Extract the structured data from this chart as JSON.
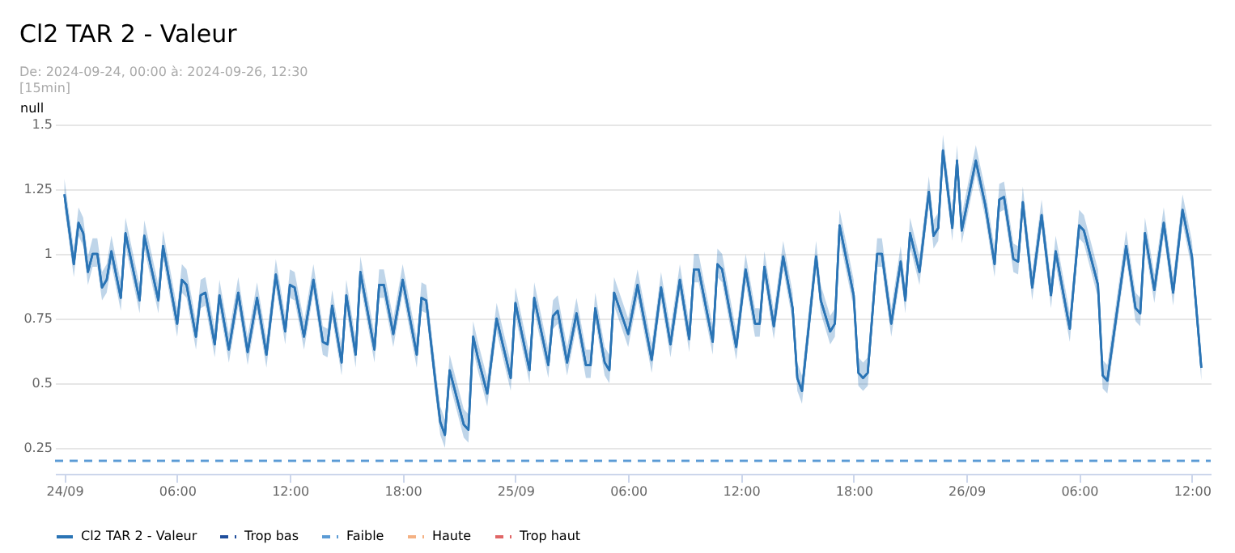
{
  "chart_data": {
    "type": "line",
    "title": "Cl2 TAR  2 - Valeur",
    "subtitle": "De:  2024-09-24, 00:00 à:  2024-09-26, 12:30",
    "ylabel": "null",
    "annotations": [
      "[15min]"
    ],
    "xlim": [
      "2024-09-23T23:30",
      "2024-09-26T13:00"
    ],
    "xticks": [
      {
        "value": "2024-09-24T00:00",
        "label": "24/09"
      },
      {
        "value": "2024-09-24T06:00",
        "label": "06:00"
      },
      {
        "value": "2024-09-24T12:00",
        "label": "12:00"
      },
      {
        "value": "2024-09-24T18:00",
        "label": "18:00"
      },
      {
        "value": "2024-09-25T00:00",
        "label": "25/09"
      },
      {
        "value": "2024-09-25T06:00",
        "label": "06:00"
      },
      {
        "value": "2024-09-25T12:00",
        "label": "12:00"
      },
      {
        "value": "2024-09-25T18:00",
        "label": "18:00"
      },
      {
        "value": "2024-09-26T00:00",
        "label": "26/09"
      },
      {
        "value": "2024-09-26T06:00",
        "label": "06:00"
      },
      {
        "value": "2024-09-26T12:00",
        "label": "12:00"
      }
    ],
    "ylim": [
      0.15,
      1.5
    ],
    "yticks": [
      0.25,
      0.5,
      0.75,
      1,
      1.25,
      1.5
    ],
    "grid": "y",
    "legend": "bottom",
    "line_style": "solid",
    "series": [
      {
        "name": "Cl2 TAR 2 - Valeur",
        "color": "#2a74b5",
        "x": [
          "2024-09-24T00:00",
          "2024-09-24T00:30",
          "2024-09-24T00:45",
          "2024-09-24T01:00",
          "2024-09-24T01:15",
          "2024-09-24T01:30",
          "2024-09-24T01:45",
          "2024-09-24T02:00",
          "2024-09-24T02:15",
          "2024-09-24T02:30",
          "2024-09-24T03:00",
          "2024-09-24T03:15",
          "2024-09-24T04:00",
          "2024-09-24T04:15",
          "2024-09-24T05:00",
          "2024-09-24T05:15",
          "2024-09-24T06:00",
          "2024-09-24T06:15",
          "2024-09-24T06:30",
          "2024-09-24T07:00",
          "2024-09-24T07:15",
          "2024-09-24T07:30",
          "2024-09-24T08:00",
          "2024-09-24T08:15",
          "2024-09-24T08:45",
          "2024-09-24T09:15",
          "2024-09-24T09:45",
          "2024-09-24T10:15",
          "2024-09-24T10:45",
          "2024-09-24T11:15",
          "2024-09-24T11:45",
          "2024-09-24T12:00",
          "2024-09-24T12:15",
          "2024-09-24T12:45",
          "2024-09-24T13:15",
          "2024-09-24T13:45",
          "2024-09-24T14:00",
          "2024-09-24T14:15",
          "2024-09-24T14:45",
          "2024-09-24T15:00",
          "2024-09-24T15:30",
          "2024-09-24T15:45",
          "2024-09-24T16:30",
          "2024-09-24T16:45",
          "2024-09-24T17:00",
          "2024-09-24T17:30",
          "2024-09-24T18:00",
          "2024-09-24T18:45",
          "2024-09-24T19:00",
          "2024-09-24T19:15",
          "2024-09-24T19:45",
          "2024-09-24T20:00",
          "2024-09-24T20:15",
          "2024-09-24T20:30",
          "2024-09-24T20:45",
          "2024-09-24T21:15",
          "2024-09-24T21:30",
          "2024-09-24T21:45",
          "2024-09-24T22:00",
          "2024-09-24T22:30",
          "2024-09-24T23:00",
          "2024-09-24T23:45",
          "2024-09-25T00:00",
          "2024-09-25T00:45",
          "2024-09-25T01:00",
          "2024-09-25T01:45",
          "2024-09-25T02:00",
          "2024-09-25T02:15",
          "2024-09-25T02:45",
          "2024-09-25T03:15",
          "2024-09-25T03:45",
          "2024-09-25T04:00",
          "2024-09-25T04:15",
          "2024-09-25T04:45",
          "2024-09-25T05:00",
          "2024-09-25T05:15",
          "2024-09-25T06:00",
          "2024-09-25T06:30",
          "2024-09-25T07:15",
          "2024-09-25T07:45",
          "2024-09-25T08:15",
          "2024-09-25T08:45",
          "2024-09-25T09:15",
          "2024-09-25T09:30",
          "2024-09-25T09:45",
          "2024-09-25T10:30",
          "2024-09-25T10:45",
          "2024-09-25T11:00",
          "2024-09-25T11:45",
          "2024-09-25T12:15",
          "2024-09-25T12:45",
          "2024-09-25T13:00",
          "2024-09-25T13:15",
          "2024-09-25T13:45",
          "2024-09-25T14:15",
          "2024-09-25T14:45",
          "2024-09-25T15:00",
          "2024-09-25T15:15",
          "2024-09-25T16:00",
          "2024-09-25T16:15",
          "2024-09-25T16:45",
          "2024-09-25T17:00",
          "2024-09-25T17:15",
          "2024-09-25T18:00",
          "2024-09-25T18:15",
          "2024-09-25T18:30",
          "2024-09-25T18:45",
          "2024-09-25T19:15",
          "2024-09-25T19:30",
          "2024-09-25T20:00",
          "2024-09-25T20:30",
          "2024-09-25T20:45",
          "2024-09-25T21:00",
          "2024-09-25T21:30",
          "2024-09-25T22:00",
          "2024-09-25T22:15",
          "2024-09-25T22:30",
          "2024-09-25T22:45",
          "2024-09-25T23:15",
          "2024-09-25T23:30",
          "2024-09-25T23:45",
          "2024-09-26T00:30",
          "2024-09-26T01:00",
          "2024-09-26T01:30",
          "2024-09-26T01:45",
          "2024-09-26T02:00",
          "2024-09-26T02:30",
          "2024-09-26T02:45",
          "2024-09-26T03:00",
          "2024-09-26T03:30",
          "2024-09-26T04:00",
          "2024-09-26T04:30",
          "2024-09-26T04:45",
          "2024-09-26T05:30",
          "2024-09-26T06:00",
          "2024-09-26T06:15",
          "2024-09-26T07:00",
          "2024-09-26T07:15",
          "2024-09-26T07:30",
          "2024-09-26T08:30",
          "2024-09-26T09:00",
          "2024-09-26T09:15",
          "2024-09-26T09:30",
          "2024-09-26T10:00",
          "2024-09-26T10:30",
          "2024-09-26T11:00",
          "2024-09-26T11:30",
          "2024-09-26T12:00",
          "2024-09-26T12:30"
        ],
        "values": [
          1.23,
          0.96,
          1.12,
          1.08,
          0.93,
          1.0,
          1.0,
          0.87,
          0.9,
          1.01,
          0.83,
          1.08,
          0.82,
          1.07,
          0.82,
          1.03,
          0.73,
          0.9,
          0.88,
          0.68,
          0.84,
          0.85,
          0.65,
          0.84,
          0.63,
          0.85,
          0.62,
          0.83,
          0.61,
          0.92,
          0.7,
          0.88,
          0.87,
          0.68,
          0.9,
          0.66,
          0.65,
          0.8,
          0.58,
          0.84,
          0.61,
          0.93,
          0.63,
          0.88,
          0.88,
          0.69,
          0.9,
          0.61,
          0.83,
          0.82,
          0.5,
          0.35,
          0.3,
          0.55,
          0.48,
          0.34,
          0.32,
          0.68,
          0.6,
          0.46,
          0.75,
          0.52,
          0.81,
          0.55,
          0.83,
          0.57,
          0.76,
          0.78,
          0.58,
          0.77,
          0.57,
          0.57,
          0.79,
          0.58,
          0.55,
          0.85,
          0.69,
          0.88,
          0.59,
          0.87,
          0.65,
          0.9,
          0.67,
          0.94,
          0.94,
          0.66,
          0.96,
          0.94,
          0.64,
          0.94,
          0.73,
          0.73,
          0.95,
          0.72,
          0.99,
          0.79,
          0.52,
          0.47,
          0.99,
          0.82,
          0.7,
          0.73,
          1.11,
          0.84,
          0.54,
          0.52,
          0.54,
          1.0,
          1.0,
          0.73,
          0.97,
          0.82,
          1.08,
          0.93,
          1.24,
          1.07,
          1.1,
          1.4,
          1.1,
          1.36,
          1.09,
          1.36,
          1.19,
          0.96,
          1.21,
          1.22,
          0.98,
          0.97,
          1.2,
          0.87,
          1.15,
          0.84,
          1.01,
          0.71,
          1.11,
          1.09,
          0.88,
          0.53,
          0.51,
          1.03,
          0.79,
          0.77,
          1.08,
          0.86,
          1.12,
          0.85,
          1.17,
          0.99,
          0.56
        ],
        "upper": [
          1.29,
          1.02,
          1.18,
          1.14,
          0.99,
          1.06,
          1.06,
          0.93,
          0.96,
          1.07,
          0.89,
          1.14,
          0.88,
          1.13,
          0.88,
          1.09,
          0.79,
          0.96,
          0.94,
          0.74,
          0.9,
          0.91,
          0.71,
          0.9,
          0.69,
          0.91,
          0.68,
          0.89,
          0.67,
          0.98,
          0.76,
          0.94,
          0.93,
          0.74,
          0.96,
          0.72,
          0.71,
          0.86,
          0.64,
          0.9,
          0.67,
          0.99,
          0.69,
          0.94,
          0.94,
          0.75,
          0.96,
          0.67,
          0.89,
          0.88,
          0.56,
          0.41,
          0.36,
          0.61,
          0.54,
          0.4,
          0.38,
          0.74,
          0.66,
          0.52,
          0.81,
          0.58,
          0.87,
          0.61,
          0.89,
          0.63,
          0.82,
          0.84,
          0.64,
          0.83,
          0.63,
          0.63,
          0.85,
          0.64,
          0.61,
          0.91,
          0.75,
          0.94,
          0.65,
          0.93,
          0.71,
          0.96,
          0.73,
          1.0,
          1.0,
          0.72,
          1.02,
          1.0,
          0.7,
          1.0,
          0.79,
          0.79,
          1.01,
          0.78,
          1.05,
          0.85,
          0.58,
          0.53,
          1.05,
          0.88,
          0.76,
          0.79,
          1.17,
          0.9,
          0.6,
          0.58,
          0.6,
          1.06,
          1.06,
          0.79,
          1.03,
          0.88,
          1.14,
          0.99,
          1.3,
          1.13,
          1.16,
          1.46,
          1.16,
          1.42,
          1.15,
          1.42,
          1.25,
          1.02,
          1.27,
          1.28,
          1.04,
          1.03,
          1.26,
          0.93,
          1.21,
          0.9,
          1.07,
          0.77,
          1.17,
          1.15,
          0.94,
          0.59,
          0.57,
          1.09,
          0.85,
          0.83,
          1.14,
          0.92,
          1.18,
          0.91,
          1.23,
          1.05,
          0.62
        ],
        "lower": [
          1.18,
          0.91,
          1.07,
          1.03,
          0.88,
          0.95,
          0.95,
          0.82,
          0.85,
          0.96,
          0.78,
          1.03,
          0.77,
          1.02,
          0.77,
          0.98,
          0.68,
          0.85,
          0.83,
          0.63,
          0.79,
          0.8,
          0.6,
          0.79,
          0.58,
          0.8,
          0.57,
          0.78,
          0.56,
          0.87,
          0.65,
          0.83,
          0.82,
          0.63,
          0.85,
          0.61,
          0.6,
          0.75,
          0.53,
          0.79,
          0.56,
          0.88,
          0.58,
          0.83,
          0.83,
          0.64,
          0.85,
          0.56,
          0.78,
          0.77,
          0.45,
          0.3,
          0.25,
          0.5,
          0.43,
          0.29,
          0.27,
          0.63,
          0.55,
          0.41,
          0.7,
          0.47,
          0.76,
          0.5,
          0.78,
          0.52,
          0.71,
          0.73,
          0.53,
          0.72,
          0.52,
          0.52,
          0.74,
          0.53,
          0.5,
          0.8,
          0.64,
          0.83,
          0.54,
          0.82,
          0.6,
          0.85,
          0.62,
          0.89,
          0.89,
          0.61,
          0.91,
          0.89,
          0.59,
          0.89,
          0.68,
          0.68,
          0.9,
          0.67,
          0.94,
          0.74,
          0.47,
          0.42,
          0.94,
          0.77,
          0.65,
          0.68,
          1.06,
          0.79,
          0.49,
          0.47,
          0.49,
          0.95,
          0.95,
          0.68,
          0.92,
          0.77,
          1.03,
          0.88,
          1.19,
          1.02,
          1.05,
          1.35,
          1.05,
          1.31,
          1.04,
          1.31,
          1.14,
          0.91,
          1.16,
          1.17,
          0.93,
          0.92,
          1.15,
          0.82,
          1.1,
          0.79,
          0.96,
          0.66,
          1.06,
          1.04,
          0.83,
          0.48,
          0.46,
          0.98,
          0.74,
          0.72,
          1.03,
          0.81,
          1.07,
          0.8,
          1.12,
          0.94,
          0.51
        ]
      },
      {
        "name": "Trop bas",
        "color": "#1f4e9c",
        "line_style": "dashed"
      },
      {
        "name": "Faible",
        "color": "#5b9bd5",
        "line_style": "dashed",
        "x": [
          "2024-09-23T23:30",
          "2024-09-26T13:00"
        ],
        "values": [
          0.2,
          0.2
        ]
      },
      {
        "name": "Haute",
        "color": "#f4b183",
        "line_style": "dashed"
      },
      {
        "name": "Trop haut",
        "color": "#e06666",
        "line_style": "dashed"
      }
    ]
  }
}
